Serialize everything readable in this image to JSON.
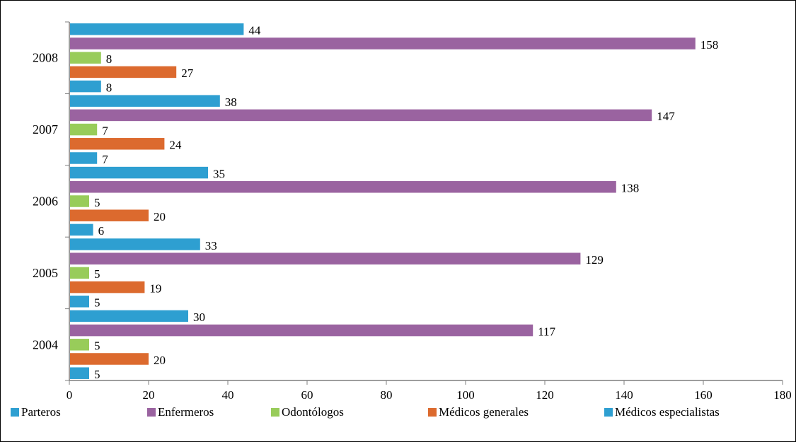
{
  "chart_data": {
    "type": "bar",
    "orientation": "horizontal",
    "title": "",
    "xlabel": "",
    "ylabel": "",
    "categories": [
      "2004",
      "2005",
      "2006",
      "2007",
      "2008"
    ],
    "xlim": [
      0,
      180
    ],
    "x_ticks": [
      "0",
      "20",
      "40",
      "60",
      "80",
      "100",
      "120",
      "140",
      "160",
      "180"
    ],
    "grid": false,
    "legend_position": "bottom",
    "series": [
      {
        "name": "Médicos especialistas",
        "color": "#2e9fd1",
        "values": [
          5,
          5,
          6,
          7,
          8
        ]
      },
      {
        "name": "Médicos generales",
        "color": "#dc6a2e",
        "values": [
          20,
          19,
          20,
          24,
          27
        ]
      },
      {
        "name": "Odontólogos",
        "color": "#98cc5a",
        "values": [
          5,
          5,
          5,
          7,
          8
        ]
      },
      {
        "name": "Enfermeros",
        "color": "#9a63a0",
        "values": [
          117,
          129,
          138,
          147,
          158
        ]
      },
      {
        "name": "Parteros",
        "color": "#2e9fd1",
        "values": [
          30,
          33,
          35,
          38,
          44
        ]
      }
    ],
    "legend_order": [
      "Parteros",
      "Enfermeros",
      "Odontólogos",
      "Médicos generales",
      "Médicos especialistas"
    ]
  }
}
